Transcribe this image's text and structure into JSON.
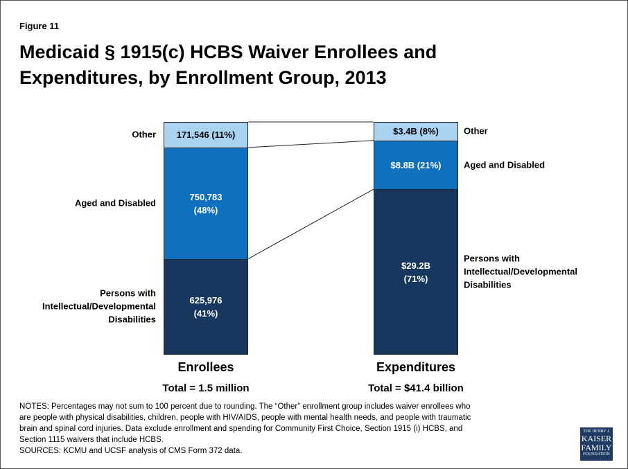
{
  "figure_label": "Figure 11",
  "chart_data": {
    "type": "stacked_bar_100",
    "title": "Medicaid § 1915(c) HCBS Waiver Enrollees and Expenditures, by Enrollment Group, 2013",
    "categories": [
      "Enrollees",
      "Expenditures"
    ],
    "category_totals": [
      "Total = 1.5 million",
      "Total = $41.4 billion"
    ],
    "series": [
      {
        "name": "Persons with Intellectual/Developmental Disabilities",
        "color": "#17375e",
        "values": [
          41,
          71
        ],
        "value_labels": [
          "625,976 (41%)",
          "$29.2B (71%)"
        ]
      },
      {
        "name": "Aged and Disabled",
        "color": "#0f70c0",
        "values": [
          48,
          21
        ],
        "value_labels": [
          "750,783 (48%)",
          "$8.8B (21%)"
        ]
      },
      {
        "name": "Other",
        "color": "#a9d3f0",
        "values": [
          11,
          8
        ],
        "value_labels": [
          "171,546 (11%)",
          "$3.4B (8%)"
        ]
      }
    ]
  },
  "notes": [
    "NOTES: Percentages may not sum to 100 percent due to rounding. The “Other” enrollment group includes waiver enrollees who",
    "are people with physical disabilities, children, people with HIV/AIDS, people with mental health needs, and people with traumatic",
    "brain and spinal cord injuries. Data exclude enrollment and spending for Community First Choice, Section 1915 (i) HCBS, and",
    "Section 1115 waivers that include HCBS.",
    "SOURCES: KCMU and UCSF analysis of CMS Form 372 data."
  ],
  "logo": [
    "THE HENRY J.",
    "KAISER",
    "FAMILY",
    "FOUNDATION"
  ]
}
